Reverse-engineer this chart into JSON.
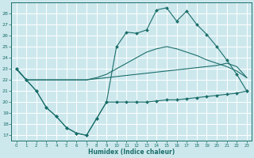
{
  "xlabel": "Humidex (Indice chaleur)",
  "bg_color": "#cde8ed",
  "grid_color": "#b8d8dd",
  "line_color": "#1a6e6a",
  "xlim": [
    -0.5,
    23.5
  ],
  "ylim": [
    16.5,
    29.0
  ],
  "yticks": [
    17,
    18,
    19,
    20,
    21,
    22,
    23,
    24,
    25,
    26,
    27,
    28
  ],
  "xticks": [
    0,
    1,
    2,
    3,
    4,
    5,
    6,
    7,
    8,
    9,
    10,
    11,
    12,
    13,
    14,
    15,
    16,
    17,
    18,
    19,
    20,
    21,
    22,
    23
  ],
  "line_bottom_marked": {
    "x": [
      0,
      1,
      2,
      3,
      4,
      5,
      6,
      7,
      8,
      9,
      10,
      11,
      12,
      13,
      14,
      15,
      16,
      17,
      18,
      19,
      20,
      21,
      22,
      23
    ],
    "y": [
      23,
      22,
      21,
      19.5,
      18.7,
      17.7,
      17.2,
      17.0,
      18.5,
      20.0,
      20.0,
      20.0,
      20.0,
      20.0,
      20.1,
      20.2,
      20.2,
      20.3,
      20.4,
      20.5,
      20.6,
      20.7,
      20.8,
      21.0
    ]
  },
  "line_lower_smooth": {
    "x": [
      0,
      1,
      2,
      3,
      4,
      5,
      6,
      7,
      8,
      9,
      10,
      11,
      12,
      13,
      14,
      15,
      16,
      17,
      18,
      19,
      20,
      21,
      22,
      23
    ],
    "y": [
      23,
      22,
      22,
      22,
      22,
      22,
      22,
      22,
      22.1,
      22.2,
      22.3,
      22.4,
      22.5,
      22.6,
      22.7,
      22.8,
      22.9,
      23.0,
      23.1,
      23.2,
      23.3,
      23.5,
      23.2,
      22.2
    ]
  },
  "line_upper_smooth": {
    "x": [
      0,
      1,
      2,
      3,
      4,
      5,
      6,
      7,
      8,
      9,
      10,
      11,
      12,
      13,
      14,
      15,
      16,
      17,
      18,
      19,
      20,
      21,
      22,
      23
    ],
    "y": [
      23,
      22,
      22,
      22,
      22,
      22,
      22,
      22,
      22.2,
      22.5,
      23.0,
      23.5,
      24.0,
      24.5,
      24.8,
      25.0,
      24.8,
      24.5,
      24.2,
      23.8,
      23.5,
      23.2,
      22.8,
      22.2
    ]
  },
  "line_top_marked": {
    "x": [
      0,
      1,
      2,
      3,
      4,
      5,
      6,
      7,
      8,
      9,
      10,
      11,
      12,
      13,
      14,
      15,
      16,
      17,
      18,
      19,
      20,
      21,
      22,
      23
    ],
    "y": [
      23,
      22,
      21,
      19.5,
      18.7,
      17.7,
      17.2,
      17.0,
      18.5,
      20.0,
      25.0,
      26.3,
      26.2,
      26.5,
      28.3,
      28.5,
      27.3,
      28.2,
      27.0,
      26.1,
      25.0,
      23.8,
      22.5,
      21.0
    ]
  }
}
